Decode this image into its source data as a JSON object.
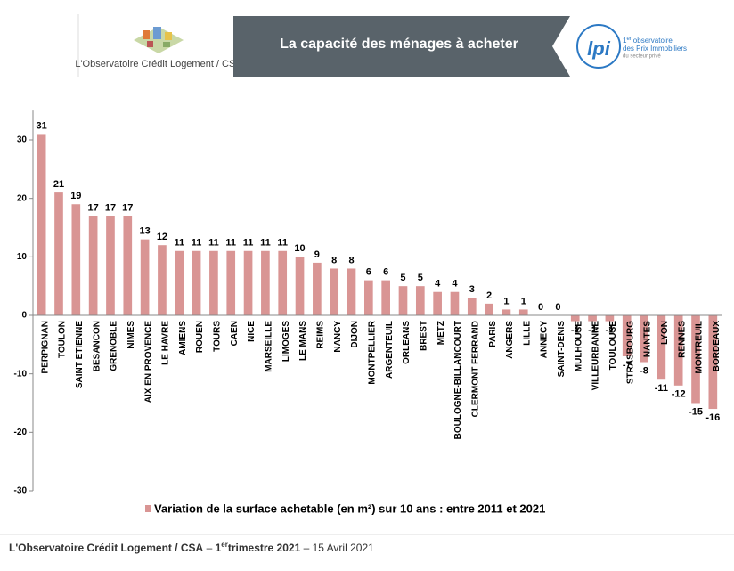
{
  "header": {
    "logo_text": "L'Observatoire Crédit Logement / CSA",
    "banner": "La capacité des ménages à acheter",
    "lpi_mark": "lpi",
    "lpi_rank": "1",
    "lpi_rank_sup": "er",
    "lpi_line1": "observatoire",
    "lpi_line2": "des Prix Immobiliers",
    "lpi_line3": "du secteur privé"
  },
  "chart_data": {
    "type": "bar",
    "color": "#d99594",
    "categories": [
      "PERPIGNAN",
      "TOULON",
      "SAINT ETIENNE",
      "BESANCON",
      "GRENOBLE",
      "NIMES",
      "AIX EN PROVENCE",
      "LE HAVRE",
      "AMIENS",
      "ROUEN",
      "TOURS",
      "CAEN",
      "NICE",
      "MARSEILLE",
      "LIMOGES",
      "LE MANS",
      "REIMS",
      "NANCY",
      "DIJON",
      "MONTPELLIER",
      "ARGENTEUIL",
      "ORLEANS",
      "BREST",
      "METZ",
      "BOULOGNE-BILLANCOURT",
      "CLERMONT FERRAND",
      "PARIS",
      "ANGERS",
      "LILLE",
      "ANNECY",
      "SAINT-DENIS",
      "MULHOUSE",
      "VILLEURBANNE",
      "TOULOUSE",
      "STRASBOURG",
      "NANTES",
      "LYON",
      "RENNES",
      "MONTREUIL",
      "BORDEAUX"
    ],
    "values": [
      31,
      21,
      19,
      17,
      17,
      17,
      13,
      12,
      11,
      11,
      11,
      11,
      11,
      11,
      11,
      10,
      9,
      8,
      8,
      6,
      6,
      5,
      5,
      4,
      4,
      3,
      2,
      1,
      1,
      0,
      0,
      -1,
      -1,
      -1,
      -7,
      -8,
      -11,
      -12,
      -15,
      -16
    ],
    "ylim": [
      -30,
      35
    ],
    "yticks": [
      -30,
      -20,
      -10,
      0,
      10,
      20,
      30
    ],
    "grid": false,
    "legend": "Variation de la surface achetable (en m²) sur 10 ans : entre 2011 et 2021"
  },
  "footer": {
    "source": "L'Observatoire Crédit Logement / CSA",
    "sep1": "–",
    "quarter_num": "1",
    "quarter_sup": "er",
    "quarter_rest": "trimestre 2021",
    "sep2": "–",
    "date": "15 Avril 2021"
  }
}
